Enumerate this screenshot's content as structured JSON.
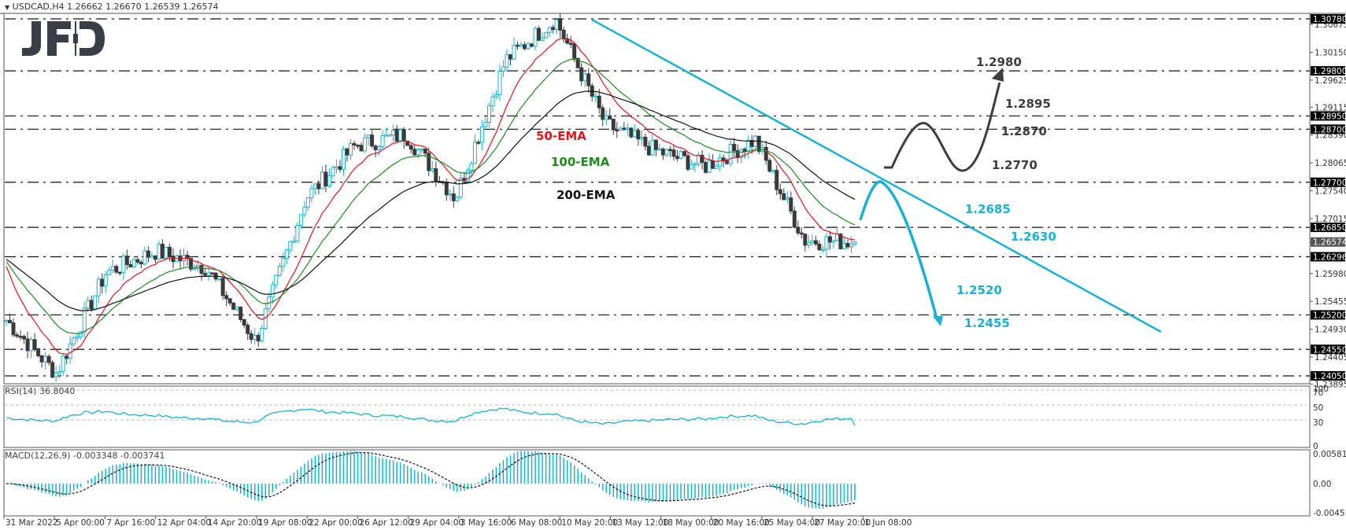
{
  "header": {
    "symbol_line": "USDCAD,H4  1.26662 1.26670 1.26539 1.26574",
    "logo": "JFD"
  },
  "colors": {
    "bull_candle": "#1ab1d1",
    "bear_candle": "#3a3a3a",
    "ema50": "#e0141e",
    "ema100": "#1f8a1f",
    "ema200": "#111111",
    "trendline": "#1ab1d1",
    "bullish_arrow": "#3d3d3d",
    "bearish_arrow": "#1ab1d1",
    "rsi_line": "#1ab1d1",
    "macd_hist": "#1ab1d1",
    "macd_signal": "#111111",
    "level_line": "#111111"
  },
  "price_axis": {
    "ticks": [
      "1.30675",
      "1.30150",
      "1.29625",
      "1.29115",
      "1.28590",
      "1.28065",
      "1.27540",
      "1.27015",
      "1.26565",
      "1.25980",
      "1.25455",
      "1.24930",
      "1.24405",
      "1.23895"
    ],
    "level_badges": [
      "1.30780",
      "1.29800",
      "1.28950",
      "1.28700",
      "1.27700",
      "1.26850",
      "1.26296",
      "1.25200",
      "1.24550",
      "1.24050"
    ],
    "current_price_badge": "1.26574"
  },
  "rsi_panel": {
    "title": "RSI(14) 36.8040",
    "ticks": [
      "100",
      "70",
      "50",
      "30",
      "0"
    ]
  },
  "macd_panel": {
    "title": "MACD(12,26,9) -0.003348 -0.003741",
    "ticks": [
      "0.005811",
      "0.00",
      "-0.004512"
    ]
  },
  "time_axis": {
    "labels": [
      "31 Mar 2022",
      "5 Apr 00:00",
      "7 Apr 16:00",
      "12 Apr 04:00",
      "14 Apr 20:00",
      "19 Apr 08:00",
      "22 Apr 00:00",
      "26 Apr 12:00",
      "29 Apr 04:00",
      "3 May 16:00",
      "6 May 08:00",
      "10 May 20:00",
      "13 May 12:00",
      "18 May 00:00",
      "20 May 16:00",
      "25 May 04:00",
      "27 May 20:00",
      "1 Jun 08:00"
    ]
  },
  "annotations": {
    "ema50": "50-EMA",
    "ema100": "100-EMA",
    "ema200": "200-EMA",
    "bull_targets": [
      "1.2980",
      "1.2895",
      "1.2870",
      "1.2770"
    ],
    "bear_targets": [
      "1.2685",
      "1.2630",
      "1.2520",
      "1.2455"
    ]
  },
  "chart_data": [
    {
      "type": "candlestick",
      "title": "USDCAD, H4",
      "ohlc_last": {
        "open": 1.26662,
        "high": 1.2667,
        "low": 1.26539,
        "close": 1.26574
      },
      "xlabel": "",
      "ylabel": "Price",
      "ylim": [
        1.2385,
        1.309
      ],
      "x_labels": [
        "31 Mar 2022",
        "5 Apr 00:00",
        "7 Apr 16:00",
        "12 Apr 04:00",
        "14 Apr 20:00",
        "19 Apr 08:00",
        "22 Apr 00:00",
        "26 Apr 12:00",
        "29 Apr 04:00",
        "3 May 16:00",
        "6 May 08:00",
        "10 May 20:00",
        "13 May 12:00",
        "18 May 00:00",
        "20 May 16:00",
        "25 May 04:00",
        "27 May 20:00",
        "1 Jun 08:00"
      ],
      "approx_close_path": [
        {
          "x": "31 Mar 2022",
          "y": 1.251
        },
        {
          "x": "5 Apr 00:00",
          "y": 1.241
        },
        {
          "x": "7 Apr 16:00",
          "y": 1.26
        },
        {
          "x": "12 Apr 04:00",
          "y": 1.264
        },
        {
          "x": "14 Apr 20:00",
          "y": 1.261
        },
        {
          "x": "19 Apr 08:00",
          "y": 1.247
        },
        {
          "x": "22 Apr 00:00",
          "y": 1.274
        },
        {
          "x": "26 Apr 12:00",
          "y": 1.284
        },
        {
          "x": "29 Apr 04:00",
          "y": 1.286
        },
        {
          "x": "3 May 16:00",
          "y": 1.274
        },
        {
          "x": "6 May 08:00",
          "y": 1.3
        },
        {
          "x": "10 May 20:00",
          "y": 1.3078
        },
        {
          "x": "13 May 12:00",
          "y": 1.288
        },
        {
          "x": "18 May 00:00",
          "y": 1.283
        },
        {
          "x": "20 May 16:00",
          "y": 1.28
        },
        {
          "x": "25 May 04:00",
          "y": 1.285
        },
        {
          "x": "27 May 20:00",
          "y": 1.266
        },
        {
          "x": "1 Jun 08:00",
          "y": 1.26574
        }
      ],
      "moving_averages": [
        {
          "name": "50-EMA",
          "color": "#e0141e"
        },
        {
          "name": "100-EMA",
          "color": "#1f8a1f"
        },
        {
          "name": "200-EMA",
          "color": "#111111"
        }
      ],
      "horizontal_levels": [
        1.3078,
        1.298,
        1.2895,
        1.287,
        1.277,
        1.2685,
        1.26296,
        1.252,
        1.2455,
        1.2405
      ],
      "trendline": {
        "from": {
          "x": "10 May 20:00",
          "y": 1.3078
        },
        "direction": "down",
        "color": "#1ab1d1"
      },
      "annotations": [
        "1.2980",
        "1.2895",
        "1.2870",
        "1.2770",
        "1.2685",
        "1.2630",
        "1.2520",
        "1.2455",
        "50-EMA",
        "100-EMA",
        "200-EMA"
      ]
    },
    {
      "type": "line",
      "title": "RSI(14) 36.8040",
      "ylim": [
        0,
        100
      ],
      "reference_lines": [
        70,
        50,
        30
      ],
      "last_value": 36.804
    },
    {
      "type": "bar",
      "title": "MACD(12,26,9) -0.003348 -0.003741",
      "ylim": [
        -0.004512,
        0.005811
      ],
      "series": [
        {
          "name": "MACD histogram",
          "last_value": -0.003348
        },
        {
          "name": "Signal",
          "last_value": -0.003741
        }
      ]
    }
  ]
}
